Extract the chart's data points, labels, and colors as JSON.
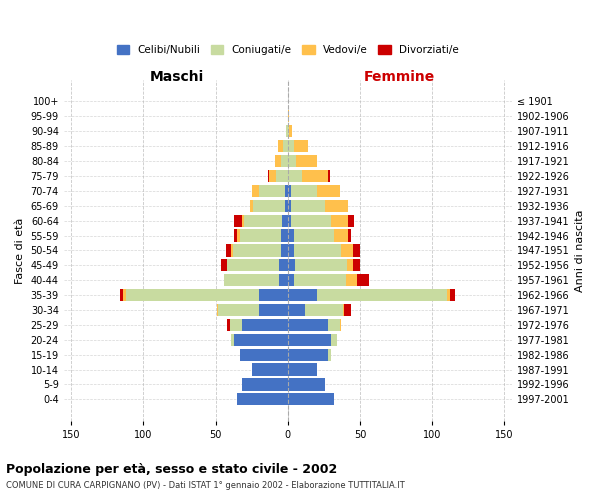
{
  "age_groups": [
    "0-4",
    "5-9",
    "10-14",
    "15-19",
    "20-24",
    "25-29",
    "30-34",
    "35-39",
    "40-44",
    "45-49",
    "50-54",
    "55-59",
    "60-64",
    "65-69",
    "70-74",
    "75-79",
    "80-84",
    "85-89",
    "90-94",
    "95-99",
    "100+"
  ],
  "birth_years": [
    "1997-2001",
    "1992-1996",
    "1987-1991",
    "1982-1986",
    "1977-1981",
    "1972-1976",
    "1967-1971",
    "1962-1966",
    "1957-1961",
    "1952-1956",
    "1947-1951",
    "1942-1946",
    "1937-1941",
    "1932-1936",
    "1927-1931",
    "1922-1926",
    "1917-1921",
    "1912-1916",
    "1907-1911",
    "1902-1906",
    "≤ 1901"
  ],
  "maschi": {
    "celibi": [
      35,
      32,
      25,
      33,
      37,
      32,
      20,
      20,
      6,
      6,
      5,
      5,
      4,
      2,
      2,
      0,
      0,
      0,
      0,
      0,
      0
    ],
    "coniugati": [
      0,
      0,
      0,
      0,
      2,
      8,
      28,
      92,
      38,
      36,
      33,
      28,
      26,
      22,
      18,
      8,
      5,
      3,
      1,
      0,
      0
    ],
    "vedovi": [
      0,
      0,
      0,
      0,
      0,
      0,
      1,
      2,
      0,
      0,
      1,
      2,
      2,
      2,
      5,
      5,
      4,
      4,
      0,
      0,
      0
    ],
    "divorziati": [
      0,
      0,
      0,
      0,
      0,
      2,
      0,
      2,
      0,
      4,
      4,
      2,
      5,
      0,
      0,
      1,
      0,
      0,
      0,
      0,
      0
    ]
  },
  "femmine": {
    "nubili": [
      32,
      26,
      20,
      28,
      30,
      28,
      12,
      20,
      4,
      5,
      4,
      4,
      2,
      2,
      2,
      0,
      0,
      0,
      0,
      0,
      0
    ],
    "coniugate": [
      0,
      0,
      0,
      2,
      4,
      8,
      26,
      90,
      36,
      36,
      33,
      28,
      28,
      24,
      18,
      10,
      6,
      4,
      1,
      0,
      0
    ],
    "vedove": [
      0,
      0,
      0,
      0,
      0,
      1,
      1,
      2,
      8,
      4,
      8,
      10,
      12,
      16,
      16,
      18,
      14,
      10,
      2,
      1,
      0
    ],
    "divorziate": [
      0,
      0,
      0,
      0,
      0,
      0,
      5,
      4,
      8,
      5,
      5,
      2,
      4,
      0,
      0,
      1,
      0,
      0,
      0,
      0,
      0
    ]
  },
  "colors": {
    "celibi": "#4472C4",
    "coniugati": "#c8dba0",
    "vedovi": "#ffc04c",
    "divorziati": "#cc0000"
  },
  "title": "Popolazione per età, sesso e stato civile - 2002",
  "subtitle": "COMUNE DI CURA CARPIGNANO (PV) - Dati ISTAT 1° gennaio 2002 - Elaborazione TUTTITALIA.IT",
  "xlabel_maschi": "Maschi",
  "xlabel_femmine": "Femmine",
  "ylabel_left": "Fasce di età",
  "ylabel_right": "Anni di nascita",
  "background_color": "#ffffff"
}
